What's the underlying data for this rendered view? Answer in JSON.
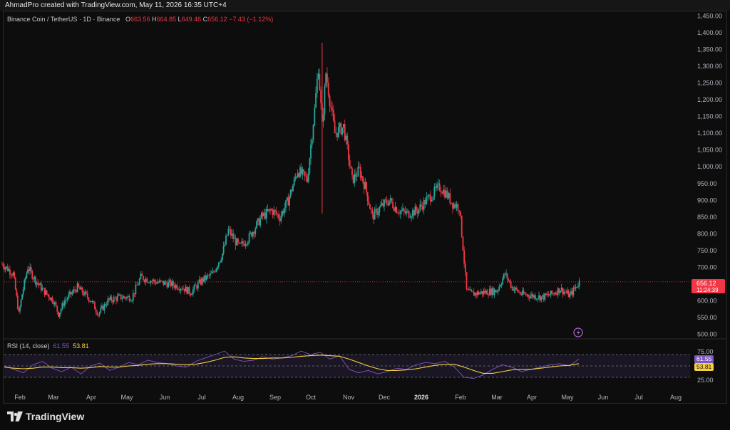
{
  "header": {
    "text": "AhmadPro created with TradingView.com, May 11, 2026 16:35 UTC+4"
  },
  "legend": {
    "symbol": "Binance Coin / TetherUS · 1D · Binance",
    "o_label": "O",
    "o_value": "663.56",
    "h_label": "H",
    "h_value": "664.85",
    "l_label": "L",
    "l_value": "649.46",
    "c_label": "C",
    "c_value": "656.12",
    "change": "−7.43 (−1.12%)"
  },
  "price_tag": {
    "value": "656.12",
    "countdown": "11:24:39"
  },
  "rsi_legend": {
    "label": "RSI (14, close)",
    "rsi_value": "61.55",
    "ma_value": "53.81"
  },
  "logo_text": "TradingView",
  "colors": {
    "up": "#26a69a",
    "down": "#f23645",
    "rsi": "#7e57c2",
    "rsi_ma": "#f5d142",
    "bg": "#0d0d0d"
  },
  "chart_data": [
    {
      "type": "candlestick",
      "title": "Binance Coin / TetherUS · 1D · Binance",
      "ylim": [
        490,
        1460
      ],
      "y_ticks": [
        "1,450.00",
        "1,400.00",
        "1,350.00",
        "1,300.00",
        "1,250.00",
        "1,200.00",
        "1,150.00",
        "1,100.00",
        "1,050.00",
        "1,000.00",
        "950.00",
        "900.00",
        "850.00",
        "800.00",
        "750.00",
        "700.00",
        "650.00",
        "600.00",
        "550.00",
        "500.00"
      ],
      "x_ticks": [
        "Feb",
        "Mar",
        "Apr",
        "May",
        "Jun",
        "Jul",
        "Aug",
        "Sep",
        "Oct",
        "Nov",
        "Dec",
        "2026",
        "Feb",
        "Mar",
        "Apr",
        "May",
        "Jun",
        "Jul",
        "Aug"
      ],
      "grid": false,
      "last_price": 656.12,
      "price_path": [
        {
          "x": "Jan 15",
          "y": 710
        },
        {
          "x": "Jan 25",
          "y": 680
        },
        {
          "x": "Jan 30",
          "y": 560
        },
        {
          "x": "Feb 3",
          "y": 620
        },
        {
          "x": "Feb 8",
          "y": 700
        },
        {
          "x": "Feb 15",
          "y": 660
        },
        {
          "x": "Feb 22",
          "y": 630
        },
        {
          "x": "Mar 1",
          "y": 600
        },
        {
          "x": "Mar 5",
          "y": 560
        },
        {
          "x": "Mar 10",
          "y": 600
        },
        {
          "x": "Mar 20",
          "y": 640
        },
        {
          "x": "Apr 1",
          "y": 600
        },
        {
          "x": "Apr 7",
          "y": 560
        },
        {
          "x": "Apr 15",
          "y": 600
        },
        {
          "x": "Apr 25",
          "y": 610
        },
        {
          "x": "May 5",
          "y": 610
        },
        {
          "x": "May 12",
          "y": 670
        },
        {
          "x": "May 25",
          "y": 655
        },
        {
          "x": "Jun 5",
          "y": 650
        },
        {
          "x": "Jun 15",
          "y": 640
        },
        {
          "x": "Jun 22",
          "y": 625
        },
        {
          "x": "Jul 1",
          "y": 660
        },
        {
          "x": "Jul 10",
          "y": 680
        },
        {
          "x": "Jul 18",
          "y": 740
        },
        {
          "x": "Jul 23",
          "y": 810
        },
        {
          "x": "Aug 2",
          "y": 760
        },
        {
          "x": "Aug 10",
          "y": 790
        },
        {
          "x": "Aug 20",
          "y": 850
        },
        {
          "x": "Aug 28",
          "y": 870
        },
        {
          "x": "Sep 5",
          "y": 850
        },
        {
          "x": "Sep 12",
          "y": 900
        },
        {
          "x": "Sep 20",
          "y": 990
        },
        {
          "x": "Sep 28",
          "y": 960
        },
        {
          "x": "Oct 4",
          "y": 1170
        },
        {
          "x": "Oct 7",
          "y": 1300
        },
        {
          "x": "Oct 10",
          "y": 1120
        },
        {
          "x": "Oct 13",
          "y": 1280
        },
        {
          "x": "Oct 20",
          "y": 1100
        },
        {
          "x": "Oct 27",
          "y": 1120
        },
        {
          "x": "Nov 4",
          "y": 960
        },
        {
          "x": "Nov 10",
          "y": 990
        },
        {
          "x": "Nov 15",
          "y": 940
        },
        {
          "x": "Nov 21",
          "y": 850
        },
        {
          "x": "Nov 28",
          "y": 880
        },
        {
          "x": "Dec 5",
          "y": 900
        },
        {
          "x": "Dec 12",
          "y": 870
        },
        {
          "x": "Dec 20",
          "y": 860
        },
        {
          "x": "Dec 28",
          "y": 870
        },
        {
          "x": "Jan 5",
          "y": 900
        },
        {
          "x": "Jan 10",
          "y": 920
        },
        {
          "x": "Jan 15",
          "y": 940
        },
        {
          "x": "Jan 20",
          "y": 920
        },
        {
          "x": "Jan 25",
          "y": 890
        },
        {
          "x": "Jan 30",
          "y": 880
        },
        {
          "x": "Feb 3",
          "y": 760
        },
        {
          "x": "Feb 6",
          "y": 630
        },
        {
          "x": "Feb 10",
          "y": 620
        },
        {
          "x": "Feb 20",
          "y": 625
        },
        {
          "x": "Mar 1",
          "y": 630
        },
        {
          "x": "Mar 8",
          "y": 680
        },
        {
          "x": "Mar 14",
          "y": 640
        },
        {
          "x": "Mar 22",
          "y": 620
        },
        {
          "x": "Apr 1",
          "y": 615
        },
        {
          "x": "Apr 10",
          "y": 610
        },
        {
          "x": "Apr 18",
          "y": 620
        },
        {
          "x": "Apr 25",
          "y": 635
        },
        {
          "x": "May 3",
          "y": 615
        },
        {
          "x": "May 11",
          "y": 656
        }
      ]
    },
    {
      "type": "line",
      "title": "RSI (14, close)",
      "ylim": [
        20,
        80
      ],
      "y_ticks": [
        "75.00",
        "25.00"
      ],
      "levels": [
        70,
        50,
        30
      ],
      "series": [
        {
          "name": "RSI",
          "last": 61.55,
          "values": [
            50,
            44,
            38,
            52,
            58,
            46,
            40,
            48,
            36,
            50,
            55,
            42,
            48,
            56,
            52,
            60,
            56,
            54,
            50,
            48,
            58,
            64,
            70,
            76,
            62,
            58,
            60,
            66,
            62,
            64,
            68,
            76,
            70,
            74,
            62,
            68,
            44,
            38,
            42,
            36,
            40,
            46,
            44,
            52,
            56,
            54,
            58,
            48,
            30,
            28,
            34,
            44,
            52,
            48,
            40,
            44,
            48,
            52,
            54,
            50,
            62
          ]
        },
        {
          "name": "MA",
          "last": 53.81,
          "values": [
            48,
            46,
            45,
            46,
            48,
            48,
            47,
            47,
            46,
            47,
            49,
            48,
            48,
            50,
            51,
            53,
            54,
            54,
            53,
            52,
            53,
            56,
            60,
            65,
            66,
            64,
            63,
            63,
            64,
            64,
            65,
            67,
            68,
            69,
            68,
            67,
            62,
            56,
            50,
            45,
            42,
            42,
            43,
            45,
            48,
            51,
            53,
            53,
            48,
            42,
            37,
            37,
            40,
            43,
            44,
            44,
            46,
            48,
            50,
            51,
            54
          ]
        }
      ]
    }
  ]
}
